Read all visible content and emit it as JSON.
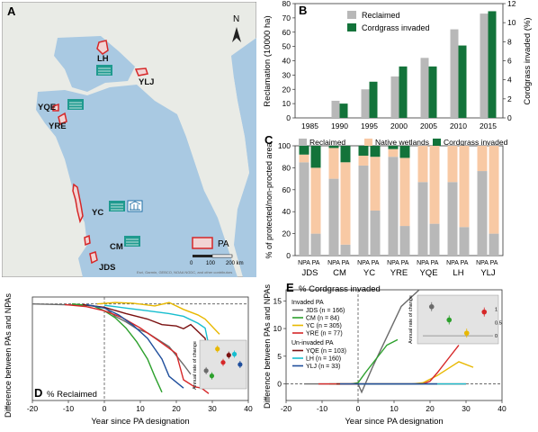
{
  "map": {
    "panel_label": "A",
    "north_label": "N",
    "scale_labels": [
      "0",
      "100",
      "200 km"
    ],
    "legend_label": "PA",
    "attribution": "Esri, Garmin, GEBCO, NOAA NGDC, and other contributors",
    "site_labels": [
      "LH",
      "YLJ",
      "YQE",
      "YRE",
      "YC",
      "CM",
      "JDS"
    ],
    "pa_color": "#d62728",
    "sea_color": "#a9c9e2",
    "land_color": "#e9ebe6"
  },
  "chart_data": [
    {
      "panel": "B",
      "type": "bar",
      "categories": [
        "1985",
        "1990",
        "1995",
        "2000",
        "2005",
        "2010",
        "2015"
      ],
      "series": [
        {
          "name": "Reclaimed",
          "axis": "left",
          "color": "#b8b8b8",
          "values": [
            0,
            12,
            20,
            29,
            42,
            62,
            73
          ]
        },
        {
          "name": "Cordgrass invaded",
          "axis": "right",
          "color": "#13733a",
          "values": [
            0,
            1.5,
            3.8,
            5.4,
            5.4,
            7.6,
            11.2
          ]
        }
      ],
      "ylabel": "Reclamation (10000 ha)",
      "ylim": [
        0,
        80
      ],
      "yticks": [
        "0",
        "10",
        "20",
        "30",
        "40",
        "50",
        "60",
        "70",
        "80"
      ],
      "y2label": "Cordgrass invaded (%)",
      "y2lim": [
        0,
        12
      ],
      "y2ticks": [
        "0",
        "2",
        "4",
        "6",
        "8",
        "10",
        "12"
      ],
      "legend": "top-left"
    },
    {
      "panel": "C",
      "type": "bar",
      "stacked": true,
      "ylabel": "% of protected/non-procted area",
      "ylim": [
        0,
        100
      ],
      "yticks": [
        "0",
        "20",
        "40",
        "60",
        "80",
        "100"
      ],
      "legend_items": [
        {
          "name": "Reclaimed",
          "color": "#b8b8b8"
        },
        {
          "name": "Native wetlands",
          "color": "#f8c9a4"
        },
        {
          "name": "Cordgrass invaded",
          "color": "#13733a"
        }
      ],
      "bar_labels": [
        "NPA",
        "PA"
      ],
      "groups": [
        {
          "site": "JDS",
          "bars": [
            {
              "reclaimed": 85,
              "native": 7,
              "cordgrass": 8
            },
            {
              "reclaimed": 20,
              "native": 60,
              "cordgrass": 20
            }
          ]
        },
        {
          "site": "CM",
          "bars": [
            {
              "reclaimed": 70,
              "native": 28,
              "cordgrass": 2
            },
            {
              "reclaimed": 10,
              "native": 75,
              "cordgrass": 15
            }
          ]
        },
        {
          "site": "YC",
          "bars": [
            {
              "reclaimed": 82,
              "native": 9,
              "cordgrass": 9
            },
            {
              "reclaimed": 41,
              "native": 49,
              "cordgrass": 10
            }
          ]
        },
        {
          "site": "YRE",
          "bars": [
            {
              "reclaimed": 90,
              "native": 7,
              "cordgrass": 3
            },
            {
              "reclaimed": 27,
              "native": 62,
              "cordgrass": 11
            }
          ]
        },
        {
          "site": "YQE",
          "bars": [
            {
              "reclaimed": 67,
              "native": 33,
              "cordgrass": 0
            },
            {
              "reclaimed": 29,
              "native": 71,
              "cordgrass": 0
            }
          ]
        },
        {
          "site": "LH",
          "bars": [
            {
              "reclaimed": 67,
              "native": 33,
              "cordgrass": 0
            },
            {
              "reclaimed": 26,
              "native": 74,
              "cordgrass": 0
            }
          ]
        },
        {
          "site": "YLJ",
          "bars": [
            {
              "reclaimed": 77,
              "native": 23,
              "cordgrass": 0
            },
            {
              "reclaimed": 20,
              "native": 80,
              "cordgrass": 0
            }
          ]
        }
      ]
    },
    {
      "panel": "D",
      "type": "line",
      "title": "% Reclaimed",
      "xlabel": "Year since PA designation",
      "ylabel": "Difference between PAs and NPAs",
      "xlim": [
        -20,
        40
      ],
      "xticks": [
        "-20",
        "-10",
        "0",
        "10",
        "20",
        "30",
        "40"
      ],
      "series": [
        {
          "name": "JDS",
          "color": "#6b6b6b",
          "x": [
            -20,
            -5,
            0,
            3,
            6,
            9,
            12,
            15,
            18,
            22,
            24
          ],
          "y": [
            0,
            -0.2,
            -0.5,
            -1.8,
            -2.6,
            -3.6,
            -4.2,
            -5.2,
            -6.2,
            -8.8,
            -10.2
          ]
        },
        {
          "name": "CM",
          "color": "#2ca02c",
          "x": [
            -9,
            -3,
            0,
            3,
            6,
            9,
            12,
            14,
            16
          ],
          "y": [
            0,
            -0.3,
            -1.0,
            -2.0,
            -3.5,
            -5.5,
            -8.0,
            -10.5,
            -12.8
          ]
        },
        {
          "name": "YC",
          "color": "#e8b800",
          "x": [
            -2,
            3,
            8,
            14,
            18,
            22,
            26,
            28,
            32
          ],
          "y": [
            0,
            0.2,
            0.1,
            -0.3,
            0.2,
            -0.8,
            -1.6,
            -2.2,
            -4.4
          ]
        },
        {
          "name": "YRE",
          "color": "#d62728",
          "x": [
            -11,
            -5,
            0,
            5,
            10,
            15,
            20,
            22,
            25,
            27,
            29
          ],
          "y": [
            -0.1,
            -0.4,
            -1.0,
            -2.0,
            -3.5,
            -5.3,
            -7.2,
            -11.0,
            -12.0,
            -12.2,
            -13.0
          ]
        },
        {
          "name": "YQE",
          "color": "#7a1010",
          "x": [
            -6,
            0,
            6,
            12,
            16,
            20,
            22,
            24,
            28,
            30
          ],
          "y": [
            -0.1,
            -0.5,
            -1.4,
            -2.2,
            -3.0,
            -3.2,
            -3.6,
            -3.0,
            -5.0,
            -12.0
          ]
        },
        {
          "name": "LH",
          "color": "#17becf",
          "x": [
            0,
            6,
            12,
            18,
            22,
            26,
            28,
            30
          ],
          "y": [
            -0.2,
            -0.6,
            -1.0,
            -1.4,
            -1.8,
            -2.8,
            -3.5,
            -8.5
          ]
        },
        {
          "name": "YLJ",
          "color": "#1f4e9c",
          "x": [
            -5,
            0,
            4,
            8,
            12,
            14,
            16,
            18,
            22
          ],
          "y": [
            -0.1,
            -0.6,
            -1.6,
            -3.1,
            -5.0,
            -6.5,
            -8.0,
            -10.5,
            -12.2
          ]
        }
      ],
      "inset": {
        "ylabel": "Annual rate of change",
        "points": [
          {
            "name": "JDS",
            "color": "#6b6b6b",
            "value": -2.6
          },
          {
            "name": "CM",
            "color": "#2ca02c",
            "value": -3.1
          },
          {
            "name": "YC",
            "color": "#e8b800",
            "value": -0.5
          },
          {
            "name": "YRE",
            "color": "#d62728",
            "value": -1.8
          },
          {
            "name": "YQE",
            "color": "#7a1010",
            "value": -1.1
          },
          {
            "name": "LH",
            "color": "#17becf",
            "value": -1.0
          },
          {
            "name": "YLJ",
            "color": "#1f4e9c",
            "value": -2.0
          }
        ]
      }
    },
    {
      "panel": "E",
      "type": "line",
      "title": "% Cordgrass invaded",
      "xlabel": "Year since PA designation",
      "ylabel": "Difference between PAs and NPAs",
      "xlim": [
        -20,
        40
      ],
      "xticks": [
        "-20",
        "-10",
        "0",
        "10",
        "20",
        "30",
        "40"
      ],
      "ylim": [
        -3,
        17
      ],
      "yticks": [
        "0",
        "5",
        "10",
        "15"
      ],
      "legend_groups": [
        {
          "title": "Invaded PA",
          "items": [
            {
              "text": "JDS (n = 166)",
              "color": "#6b6b6b"
            },
            {
              "text": "CM (n = 84)",
              "color": "#2ca02c"
            },
            {
              "text": "YC (n = 305)",
              "color": "#e8b800"
            },
            {
              "text": "YRE (n = 77)",
              "color": "#d62728"
            }
          ]
        },
        {
          "title": "Un-invaded PA",
          "items": [
            {
              "text": "YQE (n = 103)",
              "color": "#7a1010"
            },
            {
              "text": "LH (n = 160)",
              "color": "#17becf"
            },
            {
              "text": "YLJ (n = 33)",
              "color": "#1f4e9c"
            }
          ]
        }
      ],
      "series": [
        {
          "name": "JDS",
          "color": "#6b6b6b",
          "x": [
            -15,
            -6,
            0,
            1,
            4,
            8,
            12,
            17
          ],
          "y": [
            0,
            0,
            0,
            -1.5,
            3,
            8.5,
            14,
            18
          ]
        },
        {
          "name": "CM",
          "color": "#2ca02c",
          "x": [
            -8,
            -2,
            0,
            2,
            5,
            8,
            11
          ],
          "y": [
            0,
            0,
            0.2,
            2,
            4.5,
            7,
            8
          ]
        },
        {
          "name": "YC",
          "color": "#e8b800",
          "x": [
            -2,
            5,
            10,
            15,
            18,
            22,
            28,
            32
          ],
          "y": [
            0,
            0,
            0,
            0,
            0.2,
            1.5,
            4,
            3
          ]
        },
        {
          "name": "YRE",
          "color": "#d62728",
          "x": [
            -11,
            0,
            10,
            18,
            20,
            22,
            25,
            28
          ],
          "y": [
            0,
            0,
            0,
            0,
            0.5,
            2,
            4.5,
            7
          ]
        },
        {
          "name": "YQE",
          "color": "#7a1010",
          "x": [
            -6,
            30
          ],
          "y": [
            0,
            0
          ]
        },
        {
          "name": "LH",
          "color": "#17becf",
          "x": [
            0,
            30
          ],
          "y": [
            0,
            0
          ]
        },
        {
          "name": "YLJ",
          "color": "#1f4e9c",
          "x": [
            -5,
            22
          ],
          "y": [
            0,
            0
          ]
        }
      ],
      "inset": {
        "ylabel": "Annual rate of change",
        "yticks": [
          "0",
          "0.5",
          "1"
        ],
        "points": [
          {
            "name": "JDS",
            "color": "#6b6b6b",
            "value": 1.1
          },
          {
            "name": "CM",
            "color": "#2ca02c",
            "value": 0.6
          },
          {
            "name": "YC",
            "color": "#e8b800",
            "value": 0.1
          },
          {
            "name": "YRE",
            "color": "#d62728",
            "value": 0.9
          }
        ]
      }
    }
  ]
}
